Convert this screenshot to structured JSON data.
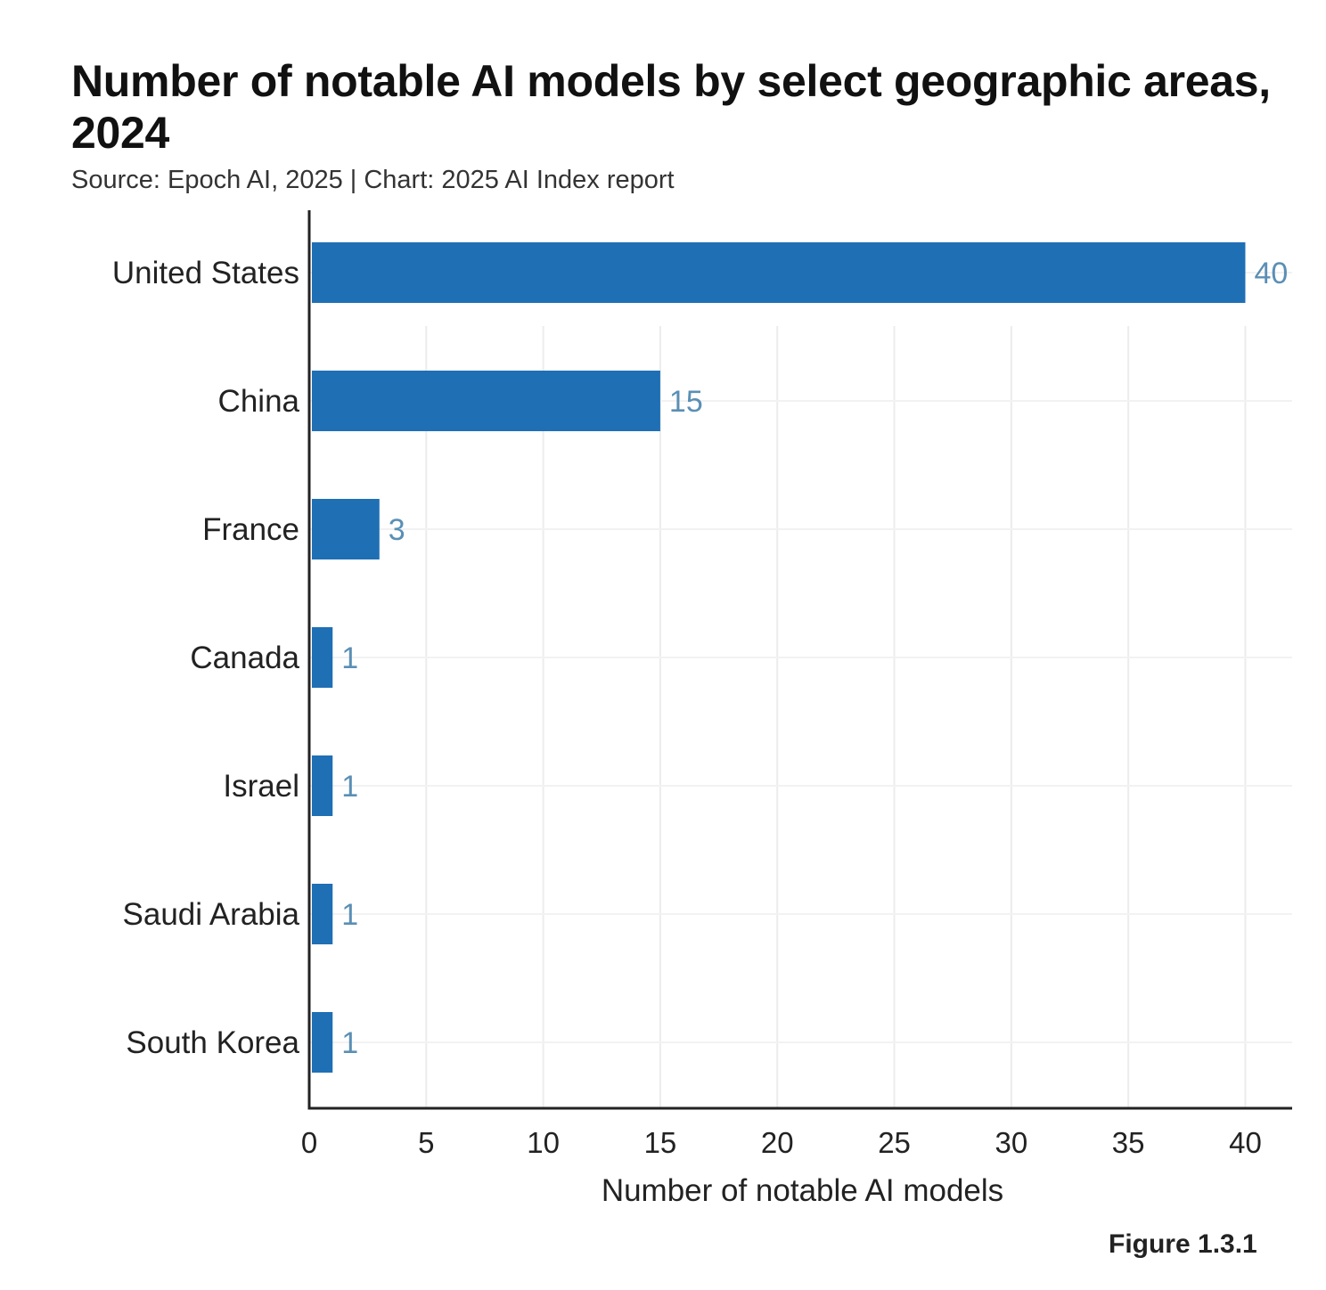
{
  "chart_data": {
    "type": "bar",
    "orientation": "horizontal",
    "title": "Number of notable AI models by select geographic areas, 2024",
    "subtitle": "Source: Epoch AI, 2025 | Chart: 2025 AI Index report",
    "categories": [
      "United States",
      "China",
      "France",
      "Canada",
      "Israel",
      "Saudi Arabia",
      "South Korea"
    ],
    "values": [
      40,
      15,
      3,
      1,
      1,
      1,
      1
    ],
    "xlabel": "Number of notable AI models",
    "ylabel": "",
    "xlim": [
      0,
      42
    ],
    "xticks": [
      0,
      5,
      10,
      15,
      20,
      25,
      30,
      35,
      40
    ],
    "grid": true,
    "bar_color": "#1f6fb5",
    "value_label_color": "#5a8fb5"
  },
  "figure_label": "Figure 1.3.1"
}
